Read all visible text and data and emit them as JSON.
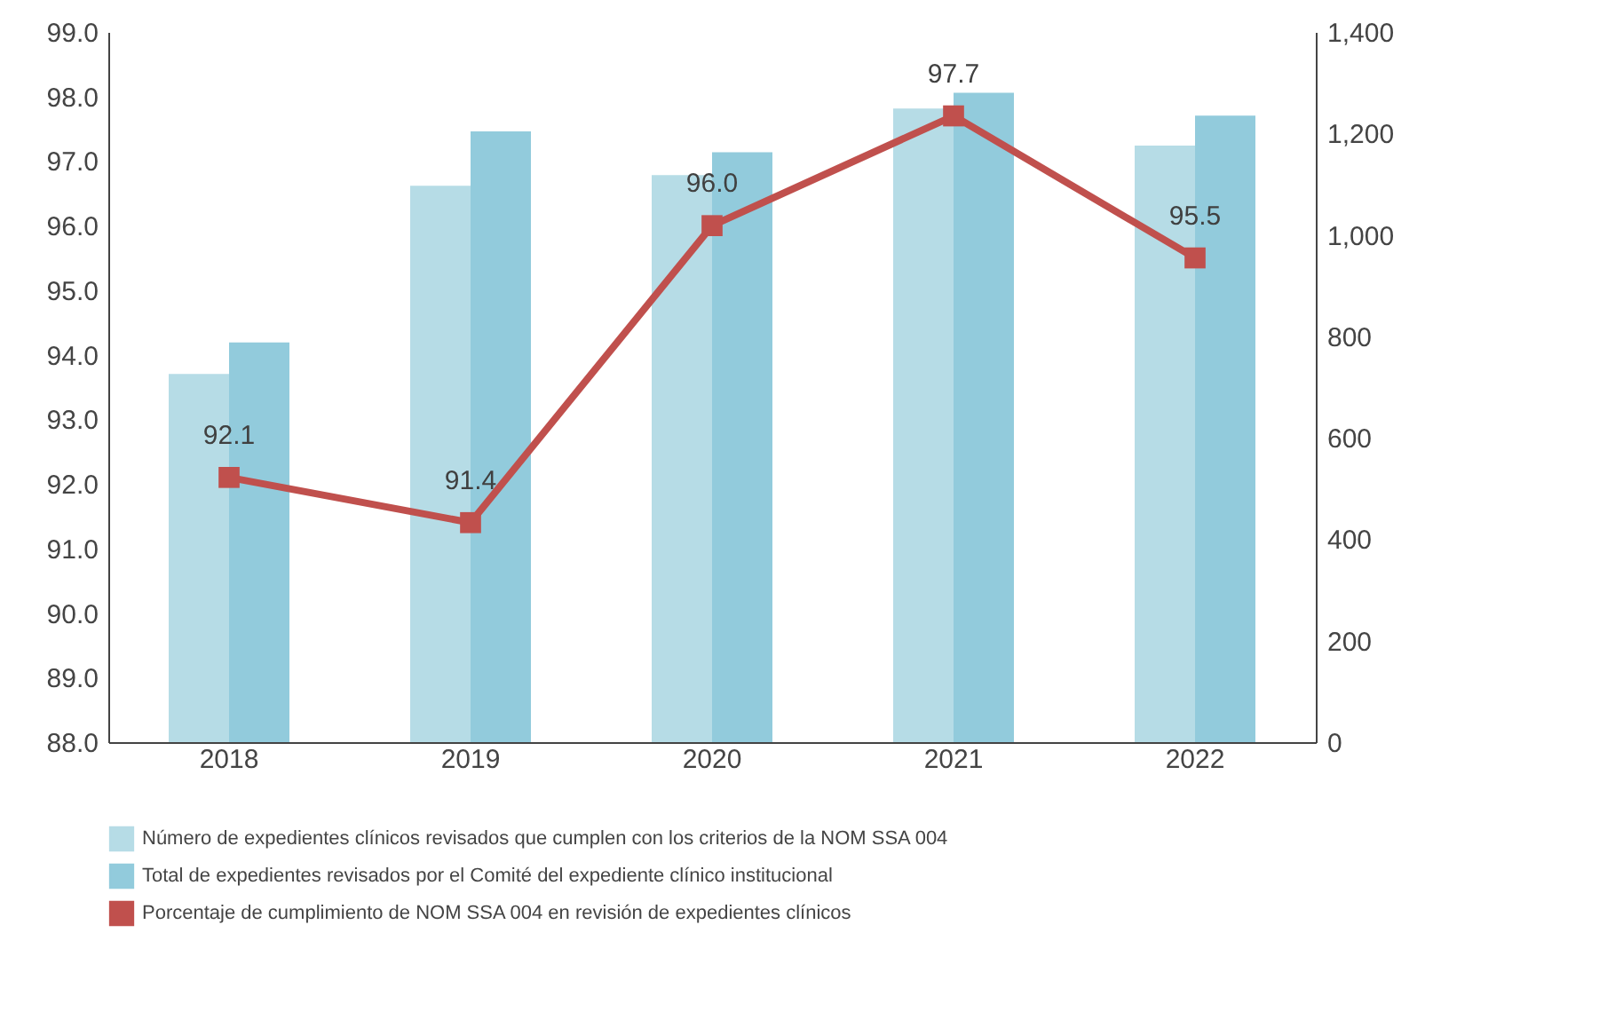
{
  "chart_data": {
    "type": "bar",
    "categories": [
      "2018",
      "2019",
      "2020",
      "2021",
      "2022"
    ],
    "series": [
      {
        "name": "Número de expedientes clínicos revisados que cumplen con los criterios de la NOM SSA 004",
        "color": "#b6dce6",
        "axis": "y2",
        "values": [
          726,
          1097,
          1118,
          1249,
          1176
        ]
      },
      {
        "name": "Total de expedientes revisados por el Comité del expediente clínico institucional",
        "color": "#92cbdc",
        "axis": "y2",
        "values": [
          788,
          1204,
          1163,
          1280,
          1235
        ]
      },
      {
        "name": "Porcentaje de cumplimiento de NOM SSA 004 en revisión de expedientes clínicos",
        "color": "#c0504d",
        "type": "line",
        "marker": "square",
        "line_style": "solid",
        "values": [
          92.1,
          91.4,
          96.0,
          97.7,
          95.5
        ],
        "value_labels": [
          "92.1",
          "91.4",
          "96.0",
          "97.7",
          "95.5"
        ]
      }
    ],
    "ylim": [
      88,
      99
    ],
    "yticks": [
      {
        "value": 88,
        "label": "88.0"
      },
      {
        "value": 89,
        "label": "89.0"
      },
      {
        "value": 90,
        "label": "90.0"
      },
      {
        "value": 91,
        "label": "91.0"
      },
      {
        "value": 92,
        "label": "92.0"
      },
      {
        "value": 93,
        "label": "93.0"
      },
      {
        "value": 94,
        "label": "94.0"
      },
      {
        "value": 95,
        "label": "95.0"
      },
      {
        "value": 96,
        "label": "96.0"
      },
      {
        "value": 97,
        "label": "97.0"
      },
      {
        "value": 98,
        "label": "98.0"
      },
      {
        "value": 99,
        "label": "99.0"
      }
    ],
    "y2lim": [
      0,
      1400
    ],
    "y2ticks": [
      0,
      200,
      400,
      600,
      800,
      {
        "value": 1000,
        "label": "1,000"
      },
      {
        "value": 1200,
        "label": "1,200"
      },
      {
        "value": 1400,
        "label": "1,400"
      }
    ],
    "grid": false,
    "legend": "bottom"
  }
}
